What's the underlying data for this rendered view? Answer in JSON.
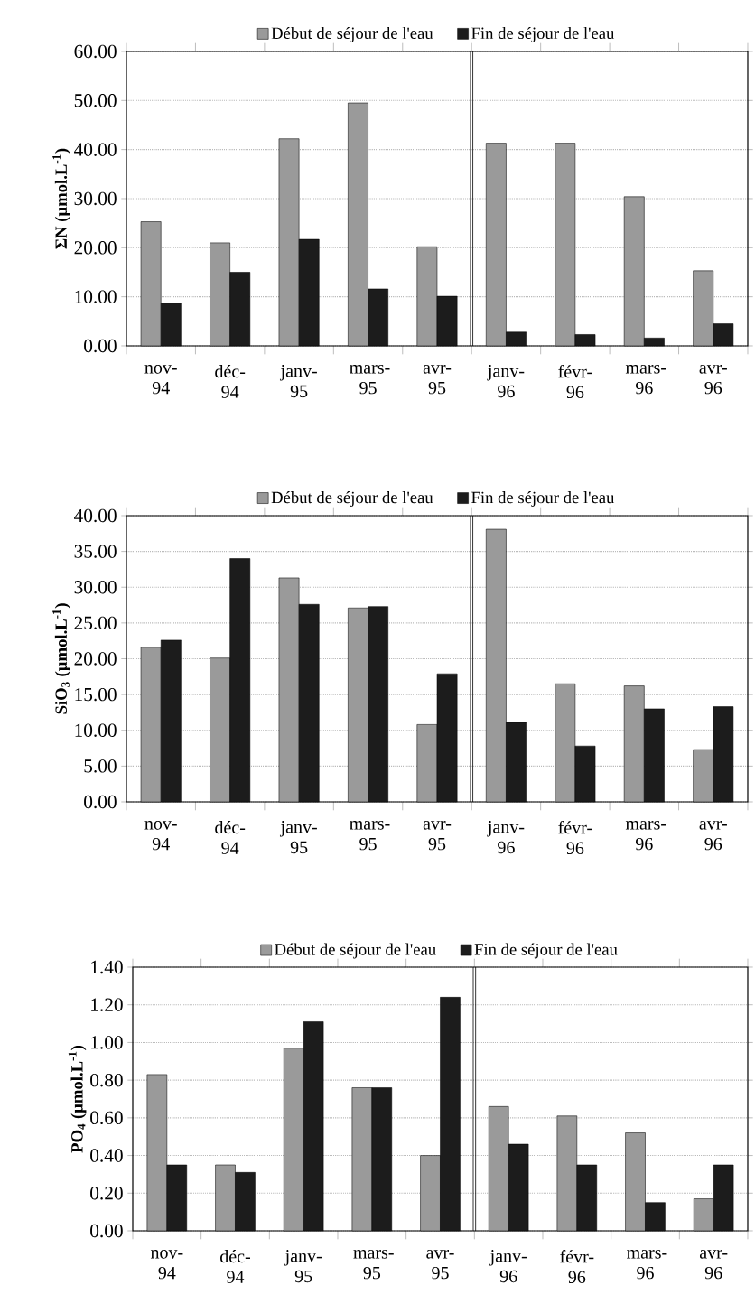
{
  "chart_data": [
    {
      "type": "bar",
      "ylabel": "**ΣN (µmol.L$^{-1}$)**",
      "categories": [
        "nov-94",
        "déc-94",
        "janv-95",
        "mars-95",
        "avr-95",
        "janv-96",
        "févr-96",
        "mars-96",
        "avr-96"
      ],
      "series": [
        {
          "name": "Début de séjour de l'eau",
          "color": "#9a9a9a",
          "values": [
            25.3,
            21.0,
            42.2,
            49.5,
            20.2,
            41.3,
            41.3,
            30.4,
            15.3
          ]
        },
        {
          "name": "Fin de séjour de l'eau",
          "color": "#1c1c1c",
          "values": [
            8.7,
            15.0,
            21.7,
            11.6,
            10.1,
            2.8,
            2.3,
            1.6,
            4.5
          ]
        }
      ],
      "ylim": [
        0,
        60
      ],
      "yticks": [
        {
          "value": 0,
          "label": "0.00"
        },
        {
          "value": 10,
          "label": "10.00"
        },
        {
          "value": 20,
          "label": "20.00"
        },
        {
          "value": 30,
          "label": "30.00"
        },
        {
          "value": 40,
          "label": "40.00"
        },
        {
          "value": 50,
          "label": "50.00"
        },
        {
          "value": 60,
          "label": "60.00"
        }
      ],
      "grid": "y",
      "legend": "top"
    },
    {
      "type": "bar",
      "ylabel": "**SiO$_{3}$ (µmol.L$^{-1}$)**",
      "categories": [
        "nov-94",
        "déc-94",
        "janv-95",
        "mars-95",
        "avr-95",
        "janv-96",
        "févr-96",
        "mars-96",
        "avr-96"
      ],
      "series": [
        {
          "name": "Début de séjour de l'eau",
          "color": "#9a9a9a",
          "values": [
            21.6,
            20.1,
            31.3,
            27.1,
            10.8,
            38.1,
            16.5,
            16.2,
            7.3
          ]
        },
        {
          "name": "Fin de séjour de l'eau",
          "color": "#1c1c1c",
          "values": [
            22.6,
            34.0,
            27.6,
            27.3,
            17.9,
            11.1,
            7.8,
            13.0,
            13.3
          ]
        }
      ],
      "ylim": [
        0,
        40
      ],
      "yticks": [
        {
          "value": 0,
          "label": "0.00"
        },
        {
          "value": 5,
          "label": "5.00"
        },
        {
          "value": 10,
          "label": "10.00"
        },
        {
          "value": 15,
          "label": "15.00"
        },
        {
          "value": 20,
          "label": "20.00"
        },
        {
          "value": 25,
          "label": "25.00"
        },
        {
          "value": 30,
          "label": "30.00"
        },
        {
          "value": 35,
          "label": "35.00"
        },
        {
          "value": 40,
          "label": "40.00"
        }
      ],
      "grid": "y",
      "legend": "top"
    },
    {
      "type": "bar",
      "ylabel": "**PO$_{4}$ (µmol.L$^{-1}$)**",
      "categories": [
        "nov-94",
        "déc-94",
        "janv-95",
        "mars-95",
        "avr-95",
        "janv-96",
        "févr-96",
        "mars-96",
        "avr-96"
      ],
      "series": [
        {
          "name": "Début de séjour de l'eau",
          "color": "#9a9a9a",
          "values": [
            0.83,
            0.35,
            0.97,
            0.76,
            0.4,
            0.66,
            0.61,
            0.52,
            0.17
          ]
        },
        {
          "name": "Fin de séjour de l'eau",
          "color": "#1c1c1c",
          "values": [
            0.35,
            0.31,
            1.11,
            0.76,
            1.24,
            0.46,
            0.35,
            0.15,
            0.35
          ]
        }
      ],
      "ylim": [
        0,
        1.4
      ],
      "yticks": [
        {
          "value": 0,
          "label": "0.00"
        },
        {
          "value": 0.2,
          "label": "0.20"
        },
        {
          "value": 0.4,
          "label": "0.40"
        },
        {
          "value": 0.6,
          "label": "0.60"
        },
        {
          "value": 0.8,
          "label": "0.80"
        },
        {
          "value": 1.0,
          "label": "1.00"
        },
        {
          "value": 1.2,
          "label": "1.20"
        },
        {
          "value": 1.4,
          "label": "1.40"
        }
      ],
      "grid": "y",
      "legend": "top"
    }
  ]
}
